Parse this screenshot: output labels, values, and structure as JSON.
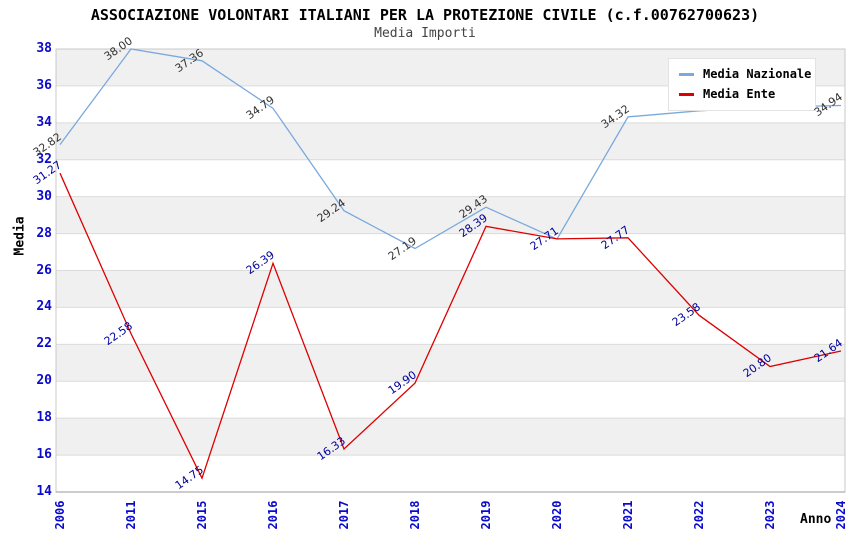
{
  "chart_data": {
    "type": "line",
    "title": "ASSOCIAZIONE VOLONTARI ITALIANI PER LA PROTEZIONE CIVILE (c.f.00762700623)",
    "subtitle": "Media Importi",
    "xlabel": "Anno",
    "ylabel": "Media",
    "categories": [
      "2006",
      "2011",
      "2015",
      "2016",
      "2017",
      "2018",
      "2019",
      "2020",
      "2021",
      "2022",
      "2023",
      "2024"
    ],
    "series": [
      {
        "name": "Media Nazionale",
        "color": "#7AA9DC",
        "label_color": "#333333",
        "values": [
          32.82,
          38.0,
          37.36,
          34.79,
          29.24,
          27.19,
          29.43,
          27.7,
          34.32,
          34.65,
          34.85,
          34.94
        ],
        "point_labels": [
          "32.82",
          "38.00",
          "37.36",
          "34.79",
          "29.24",
          "27.19",
          "29.43",
          null,
          "34.32",
          null,
          null,
          "34.94"
        ]
      },
      {
        "name": "Media Ente",
        "color": "#DD0000",
        "label_color": "#000099",
        "values": [
          31.27,
          22.58,
          14.75,
          26.39,
          16.33,
          19.9,
          28.39,
          27.71,
          27.77,
          23.58,
          20.8,
          21.64
        ],
        "point_labels": [
          "31.27",
          "22.58",
          "14.75",
          "26.39",
          "16.33",
          "19.90",
          "28.39",
          "27.71",
          "27.77",
          "23.58",
          "20.80",
          "21.64"
        ]
      }
    ],
    "ylim": [
      14,
      38
    ],
    "y_tick_step": 2,
    "grid": "alternating-horizontal-bands",
    "legend_position": "top-right"
  },
  "colors": {
    "axis_tick_text": "#0A0ACC",
    "band_fill": "#F0F0F0",
    "grid_line": "#DBDBDB",
    "plot_border": "#C8C8C8",
    "bottom_axis": "#999999",
    "background": "#FFFFFF"
  }
}
